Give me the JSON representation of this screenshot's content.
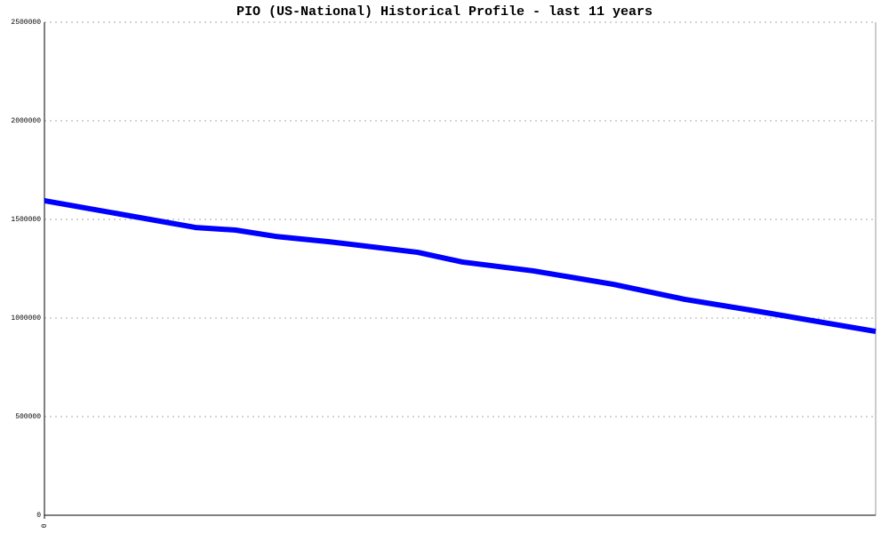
{
  "chart_data": {
    "type": "line",
    "title": "PIO (US-National) Historical Profile - last 11 years",
    "x": [
      0,
      170,
      215,
      260,
      320,
      420,
      470,
      550,
      640,
      720,
      800,
      935
    ],
    "series": [
      {
        "color": "#0000ff",
        "values": [
          1595000,
          1459000,
          1446000,
          1414000,
          1387000,
          1333000,
          1284000,
          1239000,
          1171000,
          1095000,
          1036000,
          932000
        ]
      }
    ],
    "xlim": [
      0,
      935
    ],
    "xticks": [
      0
    ],
    "ylim": [
      0,
      2500000
    ],
    "yticks": [
      0,
      500000,
      1000000,
      1500000,
      2000000,
      2500000
    ],
    "grid": true
  }
}
